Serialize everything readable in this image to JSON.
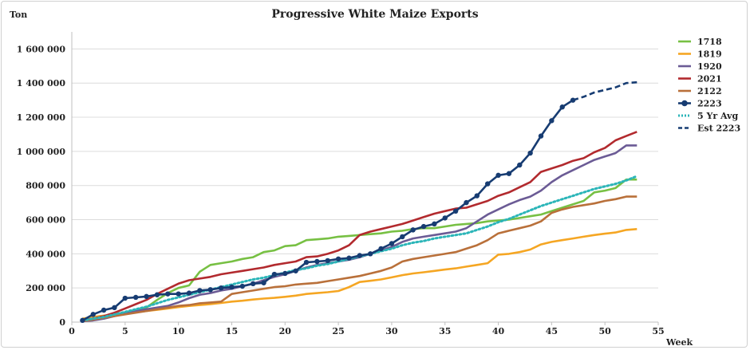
{
  "chart_data": {
    "type": "line",
    "title": "Progressive White Maize Exports",
    "ylabel": "Ton",
    "xlabel": "Week",
    "xlim": [
      0,
      55
    ],
    "ylim": [
      0,
      1700000
    ],
    "xticks": [
      0,
      5,
      10,
      15,
      20,
      25,
      30,
      35,
      40,
      45,
      50,
      55
    ],
    "yticks": [
      0,
      200000,
      400000,
      600000,
      800000,
      1000000,
      1200000,
      1400000,
      1600000
    ],
    "ytick_labels": [
      "0",
      "200 000",
      "400 000",
      "600 000",
      "800 000",
      "1 000 000",
      "1 200 000",
      "1 400 000",
      "1 600 000"
    ],
    "grid": "horizontal",
    "legend_position": "right",
    "series": [
      {
        "name": "1718",
        "color": "#77c043",
        "dash": "solid",
        "markers": false,
        "x": [
          1,
          2,
          3,
          4,
          5,
          6,
          7,
          8,
          9,
          10,
          11,
          12,
          13,
          14,
          15,
          16,
          17,
          18,
          19,
          20,
          21,
          22,
          23,
          24,
          25,
          26,
          27,
          28,
          29,
          30,
          31,
          32,
          33,
          34,
          35,
          36,
          37,
          38,
          39,
          40,
          41,
          42,
          43,
          44,
          45,
          46,
          47,
          48,
          49,
          50,
          51,
          52,
          53
        ],
        "y": [
          15000,
          25000,
          35000,
          45000,
          55000,
          65000,
          85000,
          130000,
          170000,
          200000,
          215000,
          295000,
          335000,
          345000,
          355000,
          370000,
          380000,
          410000,
          420000,
          445000,
          450000,
          480000,
          485000,
          490000,
          500000,
          505000,
          510000,
          515000,
          520000,
          530000,
          535000,
          545000,
          550000,
          550000,
          560000,
          570000,
          575000,
          580000,
          590000,
          595000,
          600000,
          610000,
          620000,
          630000,
          650000,
          670000,
          690000,
          710000,
          760000,
          770000,
          785000,
          835000,
          835000
        ]
      },
      {
        "name": "1819",
        "color": "#f5a623",
        "dash": "solid",
        "markers": false,
        "x": [
          1,
          2,
          3,
          4,
          5,
          6,
          7,
          8,
          9,
          10,
          11,
          12,
          13,
          14,
          15,
          16,
          17,
          18,
          19,
          20,
          21,
          22,
          23,
          24,
          25,
          26,
          27,
          28,
          29,
          30,
          31,
          32,
          33,
          34,
          35,
          36,
          37,
          38,
          39,
          40,
          41,
          42,
          43,
          44,
          45,
          46,
          47,
          48,
          49,
          50,
          51,
          52,
          53
        ],
        "y": [
          20000,
          30000,
          38000,
          45000,
          52000,
          58000,
          65000,
          72000,
          80000,
          88000,
          95000,
          100000,
          105000,
          112000,
          120000,
          125000,
          132000,
          138000,
          142000,
          148000,
          155000,
          165000,
          170000,
          175000,
          182000,
          205000,
          235000,
          242000,
          250000,
          262000,
          275000,
          285000,
          292000,
          300000,
          308000,
          315000,
          325000,
          335000,
          345000,
          395000,
          400000,
          410000,
          425000,
          455000,
          470000,
          480000,
          490000,
          500000,
          510000,
          518000,
          525000,
          540000,
          545000
        ]
      },
      {
        "name": "1920",
        "color": "#6b5b95",
        "dash": "solid",
        "markers": false,
        "x": [
          1,
          2,
          3,
          4,
          5,
          6,
          7,
          8,
          9,
          10,
          11,
          12,
          13,
          14,
          15,
          16,
          17,
          18,
          19,
          20,
          21,
          22,
          23,
          24,
          25,
          26,
          27,
          28,
          29,
          30,
          31,
          32,
          33,
          34,
          35,
          36,
          37,
          38,
          39,
          40,
          41,
          42,
          43,
          44,
          45,
          46,
          47,
          48,
          49,
          50,
          51,
          52,
          53
        ],
        "y": [
          5000,
          10000,
          20000,
          35000,
          50000,
          65000,
          75000,
          85000,
          95000,
          115000,
          140000,
          160000,
          170000,
          185000,
          195000,
          210000,
          225000,
          245000,
          265000,
          280000,
          300000,
          320000,
          335000,
          345000,
          355000,
          365000,
          380000,
          400000,
          420000,
          440000,
          470000,
          490000,
          500000,
          510000,
          520000,
          530000,
          550000,
          590000,
          630000,
          660000,
          690000,
          715000,
          735000,
          770000,
          820000,
          860000,
          890000,
          920000,
          950000,
          970000,
          990000,
          1035000,
          1035000
        ]
      },
      {
        "name": "2021",
        "color": "#b22a2e",
        "dash": "solid",
        "markers": false,
        "x": [
          1,
          2,
          3,
          4,
          5,
          6,
          7,
          8,
          9,
          10,
          11,
          12,
          13,
          14,
          15,
          16,
          17,
          18,
          19,
          20,
          21,
          22,
          23,
          24,
          25,
          26,
          27,
          28,
          29,
          30,
          31,
          32,
          33,
          34,
          35,
          36,
          37,
          38,
          39,
          40,
          41,
          42,
          43,
          44,
          45,
          46,
          47,
          48,
          49,
          50,
          51,
          52,
          53
        ],
        "y": [
          10000,
          20000,
          35000,
          55000,
          80000,
          105000,
          130000,
          165000,
          195000,
          225000,
          245000,
          255000,
          265000,
          280000,
          290000,
          300000,
          310000,
          320000,
          335000,
          345000,
          355000,
          380000,
          385000,
          400000,
          420000,
          450000,
          510000,
          530000,
          545000,
          560000,
          575000,
          595000,
          615000,
          635000,
          650000,
          665000,
          670000,
          690000,
          710000,
          740000,
          760000,
          790000,
          820000,
          880000,
          900000,
          920000,
          945000,
          960000,
          995000,
          1020000,
          1065000,
          1090000,
          1115000
        ]
      },
      {
        "name": "2122",
        "color": "#b9703a",
        "dash": "solid",
        "markers": false,
        "x": [
          1,
          2,
          3,
          4,
          5,
          6,
          7,
          8,
          9,
          10,
          11,
          12,
          13,
          14,
          15,
          16,
          17,
          18,
          19,
          20,
          21,
          22,
          23,
          24,
          25,
          26,
          27,
          28,
          29,
          30,
          31,
          32,
          33,
          34,
          35,
          36,
          37,
          38,
          39,
          40,
          41,
          42,
          43,
          44,
          45,
          46,
          47,
          48,
          49,
          50,
          51,
          52,
          53
        ],
        "y": [
          5000,
          15000,
          25000,
          35000,
          45000,
          55000,
          65000,
          75000,
          85000,
          95000,
          100000,
          110000,
          115000,
          120000,
          165000,
          175000,
          185000,
          195000,
          205000,
          210000,
          220000,
          225000,
          230000,
          240000,
          250000,
          260000,
          270000,
          285000,
          300000,
          320000,
          355000,
          370000,
          380000,
          390000,
          400000,
          410000,
          430000,
          450000,
          480000,
          520000,
          535000,
          550000,
          565000,
          590000,
          640000,
          660000,
          675000,
          685000,
          695000,
          710000,
          720000,
          735000,
          735000
        ]
      },
      {
        "name": "2223",
        "color": "#173c72",
        "dash": "solid",
        "markers": true,
        "x": [
          1,
          2,
          3,
          4,
          5,
          6,
          7,
          8,
          9,
          10,
          11,
          12,
          13,
          14,
          15,
          16,
          17,
          18,
          19,
          20,
          21,
          22,
          23,
          24,
          25,
          26,
          27,
          28,
          29,
          30,
          31,
          32,
          33,
          34,
          35,
          36,
          37,
          38,
          39,
          40,
          41,
          42,
          43,
          44,
          45,
          46,
          47
        ],
        "y": [
          10000,
          45000,
          70000,
          85000,
          140000,
          145000,
          150000,
          160000,
          165000,
          165000,
          170000,
          185000,
          190000,
          200000,
          205000,
          210000,
          225000,
          230000,
          280000,
          285000,
          300000,
          350000,
          355000,
          360000,
          370000,
          375000,
          390000,
          400000,
          430000,
          460000,
          500000,
          540000,
          560000,
          575000,
          610000,
          650000,
          700000,
          740000,
          810000,
          860000,
          870000,
          920000,
          990000,
          1090000,
          1180000,
          1260000,
          1300000
        ]
      },
      {
        "name": "5 Yr Avg",
        "color": "#2bb5b8",
        "dash": "dotted",
        "markers": false,
        "x": [
          1,
          2,
          3,
          4,
          5,
          6,
          7,
          8,
          9,
          10,
          11,
          12,
          13,
          14,
          15,
          16,
          17,
          18,
          19,
          20,
          21,
          22,
          23,
          24,
          25,
          26,
          27,
          28,
          29,
          30,
          31,
          32,
          33,
          34,
          35,
          36,
          37,
          38,
          39,
          40,
          41,
          42,
          43,
          44,
          45,
          46,
          47,
          48,
          49,
          50,
          51,
          52,
          53
        ],
        "y": [
          10000,
          20000,
          30000,
          45000,
          60000,
          75000,
          90000,
          110000,
          130000,
          145000,
          160000,
          175000,
          190000,
          205000,
          220000,
          235000,
          250000,
          260000,
          275000,
          290000,
          305000,
          315000,
          330000,
          340000,
          355000,
          370000,
          385000,
          400000,
          415000,
          430000,
          450000,
          465000,
          475000,
          490000,
          500000,
          510000,
          520000,
          540000,
          560000,
          585000,
          605000,
          630000,
          655000,
          680000,
          700000,
          720000,
          740000,
          760000,
          780000,
          795000,
          810000,
          830000,
          855000
        ]
      },
      {
        "name": "Est 2223",
        "color": "#173c72",
        "dash": "dashed",
        "markers": false,
        "x": [
          47,
          48,
          49,
          50,
          51,
          52,
          53
        ],
        "y": [
          1300000,
          1320000,
          1345000,
          1360000,
          1375000,
          1400000,
          1405000
        ]
      }
    ]
  }
}
